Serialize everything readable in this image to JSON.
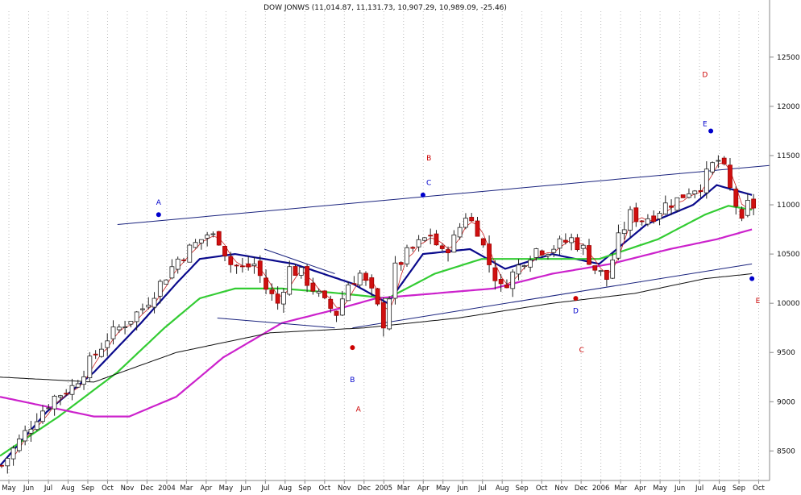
{
  "chart_data": {
    "type": "candlestick",
    "title": "DOW JONWS (11,014.87, 11,131.73, 10,907.29, 10,989.09, -25.46)",
    "y_ticks": [
      8500,
      9000,
      9500,
      10000,
      10500,
      11000,
      11500,
      12000,
      12500
    ],
    "ylim": [
      8200,
      12900
    ],
    "grid": "vertical dotted",
    "x_ticks": [
      "May",
      "Jun",
      "Jul",
      "Aug",
      "Sep",
      "Oct",
      "Nov",
      "Dec",
      "2004",
      "Mar",
      "Apr",
      "May",
      "Jun",
      "Jul",
      "Aug",
      "Sep",
      "Oct",
      "Nov",
      "Dec",
      "2005",
      "Mar",
      "Apr",
      "May",
      "Jun",
      "Jul",
      "Aug",
      "Sep",
      "Oct",
      "Nov",
      "Dec",
      "2006",
      "Mar",
      "Apr",
      "May",
      "Jun",
      "Jul",
      "Aug",
      "Sep",
      "Oct"
    ],
    "price_path": [
      [
        0,
        8350
      ],
      [
        3,
        8600
      ],
      [
        6,
        8850
      ],
      [
        9,
        9050
      ],
      [
        12,
        9150
      ],
      [
        15,
        9400
      ],
      [
        18,
        9650
      ],
      [
        21,
        9800
      ],
      [
        24,
        9950
      ],
      [
        27,
        10200
      ],
      [
        30,
        10450
      ],
      [
        33,
        10600
      ],
      [
        35,
        10700
      ],
      [
        37,
        10650
      ],
      [
        39,
        10400
      ],
      [
        41,
        10350
      ],
      [
        43,
        10400
      ],
      [
        45,
        10150
      ],
      [
        47,
        10000
      ],
      [
        49,
        10350
      ],
      [
        51,
        10300
      ],
      [
        53,
        10150
      ],
      [
        55,
        10000
      ],
      [
        57,
        9900
      ],
      [
        59,
        10200
      ],
      [
        61,
        10300
      ],
      [
        63,
        10100
      ],
      [
        65,
        9800
      ],
      [
        67,
        10350
      ],
      [
        69,
        10500
      ],
      [
        71,
        10600
      ],
      [
        73,
        10700
      ],
      [
        75,
        10500
      ],
      [
        77,
        10650
      ],
      [
        79,
        10900
      ],
      [
        81,
        10750
      ],
      [
        83,
        10400
      ],
      [
        85,
        10150
      ],
      [
        87,
        10300
      ],
      [
        89,
        10450
      ],
      [
        91,
        10550
      ],
      [
        93,
        10550
      ],
      [
        95,
        10600
      ],
      [
        97,
        10650
      ],
      [
        99,
        10550
      ],
      [
        101,
        10350
      ],
      [
        103,
        10250
      ],
      [
        105,
        10650
      ],
      [
        107,
        10900
      ],
      [
        109,
        10850
      ],
      [
        111,
        10900
      ],
      [
        113,
        11000
      ],
      [
        115,
        11050
      ],
      [
        117,
        11150
      ],
      [
        119,
        11200
      ],
      [
        121,
        11400
      ],
      [
        122,
        11450
      ],
      [
        123,
        11350
      ],
      [
        124,
        11150
      ],
      [
        125,
        11000
      ],
      [
        126,
        10800
      ],
      [
        127,
        11000
      ],
      [
        128,
        10989
      ]
    ],
    "series": [
      {
        "name": "",
        "color": "#0a0a8c",
        "values": [
          [
            0,
            8350
          ],
          [
            8,
            8900
          ],
          [
            16,
            9300
          ],
          [
            24,
            9800
          ],
          [
            30,
            10200
          ],
          [
            34,
            10450
          ],
          [
            40,
            10500
          ],
          [
            50,
            10400
          ],
          [
            60,
            10200
          ],
          [
            66,
            10000
          ],
          [
            72,
            10500
          ],
          [
            80,
            10550
          ],
          [
            86,
            10350
          ],
          [
            94,
            10500
          ],
          [
            102,
            10400
          ],
          [
            110,
            10800
          ],
          [
            118,
            11000
          ],
          [
            122,
            11200
          ],
          [
            128,
            11100
          ]
        ]
      },
      {
        "name": "",
        "color": "#33cc33",
        "values": [
          [
            0,
            8450
          ],
          [
            10,
            8850
          ],
          [
            20,
            9300
          ],
          [
            28,
            9750
          ],
          [
            34,
            10050
          ],
          [
            40,
            10150
          ],
          [
            48,
            10150
          ],
          [
            58,
            10100
          ],
          [
            66,
            10050
          ],
          [
            74,
            10300
          ],
          [
            82,
            10450
          ],
          [
            92,
            10450
          ],
          [
            102,
            10450
          ],
          [
            112,
            10650
          ],
          [
            120,
            10900
          ],
          [
            124,
            10990
          ],
          [
            128,
            10950
          ]
        ]
      },
      {
        "name": "",
        "color": "#cc22cc",
        "values": [
          [
            0,
            9050
          ],
          [
            8,
            8950
          ],
          [
            16,
            8850
          ],
          [
            22,
            8850
          ],
          [
            30,
            9050
          ],
          [
            38,
            9450
          ],
          [
            48,
            9800
          ],
          [
            58,
            9950
          ],
          [
            64,
            10050
          ],
          [
            74,
            10100
          ],
          [
            84,
            10150
          ],
          [
            94,
            10300
          ],
          [
            104,
            10400
          ],
          [
            114,
            10550
          ],
          [
            122,
            10650
          ],
          [
            128,
            10750
          ]
        ]
      },
      {
        "name": "",
        "color": "#111111",
        "values": [
          [
            0,
            9250
          ],
          [
            16,
            9200
          ],
          [
            30,
            9500
          ],
          [
            46,
            9700
          ],
          [
            62,
            9750
          ],
          [
            78,
            9850
          ],
          [
            94,
            10000
          ],
          [
            108,
            10100
          ],
          [
            120,
            10250
          ],
          [
            128,
            10300
          ]
        ]
      }
    ],
    "trend_lines": [
      {
        "color": "#1a237e",
        "from": [
          20,
          10800
        ],
        "to": [
          131,
          11400
        ]
      },
      {
        "color": "#1a237e",
        "from": [
          60,
          9750
        ],
        "to": [
          128,
          10400
        ]
      },
      {
        "color": "#1a237e",
        "from": [
          37,
          9850
        ],
        "to": [
          57,
          9750
        ]
      },
      {
        "color": "#1a237e",
        "from": [
          45,
          10550
        ],
        "to": [
          57,
          10300
        ]
      }
    ],
    "annotations": [
      {
        "text": "A",
        "color": "#0000cc",
        "at": [
          27,
          11000
        ]
      },
      {
        "text": "C",
        "color": "#0000cc",
        "at": [
          73,
          11200
        ]
      },
      {
        "text": "B",
        "color": "#cc0000",
        "at": [
          73,
          11450
        ]
      },
      {
        "text": "E",
        "color": "#0000cc",
        "at": [
          120,
          11800
        ]
      },
      {
        "text": "D",
        "color": "#cc0000",
        "at": [
          120,
          12300
        ]
      },
      {
        "text": "B",
        "color": "#0000cc",
        "at": [
          60,
          9200
        ]
      },
      {
        "text": "A",
        "color": "#cc0000",
        "at": [
          61,
          8900
        ]
      },
      {
        "text": "D",
        "color": "#0000cc",
        "at": [
          98,
          9900
        ]
      },
      {
        "text": "C",
        "color": "#cc0000",
        "at": [
          99,
          9500
        ]
      },
      {
        "text": "E",
        "color": "#cc0000",
        "at": [
          129,
          10000
        ]
      }
    ],
    "markers": [
      {
        "color": "#0000cc",
        "at": [
          27,
          10900
        ]
      },
      {
        "color": "#0000cc",
        "at": [
          72,
          11100
        ]
      },
      {
        "color": "#0000cc",
        "at": [
          121,
          11750
        ]
      },
      {
        "color": "#0000cc",
        "at": [
          128,
          10250
        ]
      },
      {
        "color": "#cc0000",
        "at": [
          60,
          9550
        ]
      },
      {
        "color": "#cc0000",
        "at": [
          98,
          10050
        ]
      }
    ]
  }
}
